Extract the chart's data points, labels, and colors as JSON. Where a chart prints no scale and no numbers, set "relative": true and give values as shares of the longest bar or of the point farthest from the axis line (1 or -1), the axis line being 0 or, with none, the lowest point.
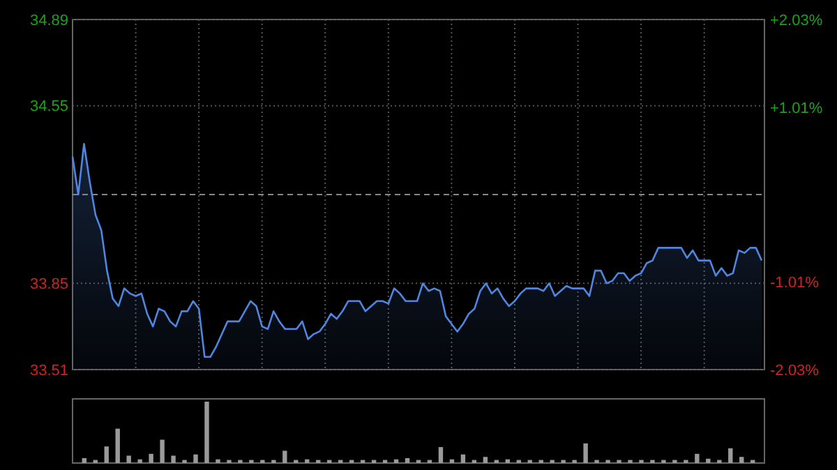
{
  "chart_data": [
    {
      "type": "area",
      "categories": [
        null,
        null,
        null,
        null,
        null,
        null,
        null,
        null,
        null,
        null,
        null,
        null,
        null,
        null,
        null,
        null,
        null,
        null,
        null,
        null,
        null,
        null,
        null,
        null,
        null,
        null,
        null,
        null,
        null,
        null,
        null,
        null,
        null,
        null,
        null,
        null,
        null,
        null,
        null,
        null,
        null,
        null,
        null,
        null,
        null,
        null,
        null,
        null,
        null,
        null,
        null,
        null,
        null,
        null,
        null,
        null,
        null,
        null,
        null,
        null,
        null,
        null,
        null,
        null,
        null,
        null,
        null,
        null,
        null,
        null,
        null,
        null,
        null,
        null,
        null,
        null,
        null,
        null,
        null,
        null,
        null,
        null,
        null,
        null,
        null,
        null,
        null,
        null,
        null,
        null,
        null,
        null,
        null,
        null,
        null,
        null,
        null,
        null,
        null,
        null,
        null,
        null,
        null,
        null,
        null,
        null,
        null,
        null,
        null,
        null,
        null,
        null,
        null,
        null,
        null,
        null,
        null,
        null,
        null,
        null,
        null
      ],
      "series": [
        {
          "color": "#4f86e0",
          "values": [
            34.35,
            34.2,
            34.4,
            34.25,
            34.12,
            34.06,
            33.9,
            33.79,
            33.76,
            33.83,
            33.81,
            33.8,
            33.81,
            33.73,
            33.68,
            33.75,
            33.74,
            33.7,
            33.68,
            33.74,
            33.74,
            33.78,
            33.75,
            33.56,
            33.56,
            33.6,
            33.65,
            33.7,
            33.7,
            33.7,
            33.74,
            33.78,
            33.76,
            33.68,
            33.67,
            33.74,
            33.7,
            33.67,
            33.67,
            33.67,
            33.7,
            33.63,
            33.65,
            33.66,
            33.69,
            33.73,
            33.71,
            33.74,
            33.78,
            33.78,
            33.78,
            33.74,
            33.76,
            33.78,
            33.78,
            33.77,
            33.83,
            33.81,
            33.78,
            33.78,
            33.78,
            33.85,
            33.82,
            33.83,
            33.82,
            33.72,
            33.69,
            33.66,
            33.69,
            33.73,
            33.75,
            33.82,
            33.85,
            33.81,
            33.83,
            33.79,
            33.76,
            33.78,
            33.81,
            33.83,
            33.83,
            33.83,
            33.82,
            33.85,
            33.8,
            33.82,
            33.84,
            33.83,
            33.83,
            33.83,
            33.8,
            33.9,
            33.9,
            33.85,
            33.86,
            33.89,
            33.89,
            33.86,
            33.88,
            33.89,
            33.93,
            33.94,
            33.99,
            33.99,
            33.99,
            33.99,
            33.99,
            33.95,
            33.98,
            33.94,
            33.94,
            33.94,
            33.88,
            33.91,
            33.88,
            33.89,
            33.98,
            33.97,
            33.99,
            33.99,
            33.94
          ]
        }
      ],
      "ylim": [
        33.51,
        34.89
      ],
      "yticks": [
        33.51,
        33.85,
        34.55,
        34.89
      ],
      "y2lim": [
        -2.03,
        2.03
      ],
      "y2ticks": [
        {
          "value": -2.03,
          "label": "-2.03%"
        },
        {
          "value": -1.01,
          "label": "-1.01%"
        },
        {
          "value": 1.01,
          "label": "+1.01%"
        },
        {
          "value": 2.03,
          "label": "+2.03%"
        }
      ],
      "ref_lines": [
        {
          "axis": "y",
          "value": 34.2,
          "line_style": "dashed"
        }
      ],
      "grid": true,
      "tick_labels": "y"
    },
    {
      "type": "bar",
      "relative": true,
      "color": "#9a9a9a",
      "tick_labels": false,
      "categories": [
        null,
        null,
        null,
        null,
        null,
        null,
        null,
        null,
        null,
        null,
        null,
        null,
        null,
        null,
        null,
        null,
        null,
        null,
        null,
        null,
        null,
        null,
        null,
        null,
        null,
        null,
        null,
        null,
        null,
        null,
        null,
        null,
        null,
        null,
        null,
        null,
        null,
        null,
        null,
        null,
        null,
        null,
        null,
        null,
        null,
        null,
        null,
        null,
        null,
        null,
        null,
        null,
        null,
        null,
        null,
        null,
        null,
        null,
        null,
        null,
        null
      ],
      "values": [
        0.08,
        0.05,
        0.27,
        0.56,
        0.12,
        0.06,
        0.15,
        0.38,
        0.12,
        0.05,
        0.14,
        1.0,
        0.06,
        0.05,
        0.05,
        0.05,
        0.05,
        0.05,
        0.2,
        0.05,
        0.06,
        0.05,
        0.05,
        0.05,
        0.05,
        0.05,
        0.05,
        0.05,
        0.06,
        0.08,
        0.05,
        0.05,
        0.26,
        0.06,
        0.14,
        0.05,
        0.1,
        0.05,
        0.06,
        0.05,
        0.05,
        0.05,
        0.05,
        0.05,
        0.05,
        0.32,
        0.05,
        0.05,
        0.05,
        0.05,
        0.05,
        0.05,
        0.05,
        0.05,
        0.05,
        0.15,
        0.07,
        0.05,
        0.24,
        0.1,
        0.05
      ]
    }
  ]
}
